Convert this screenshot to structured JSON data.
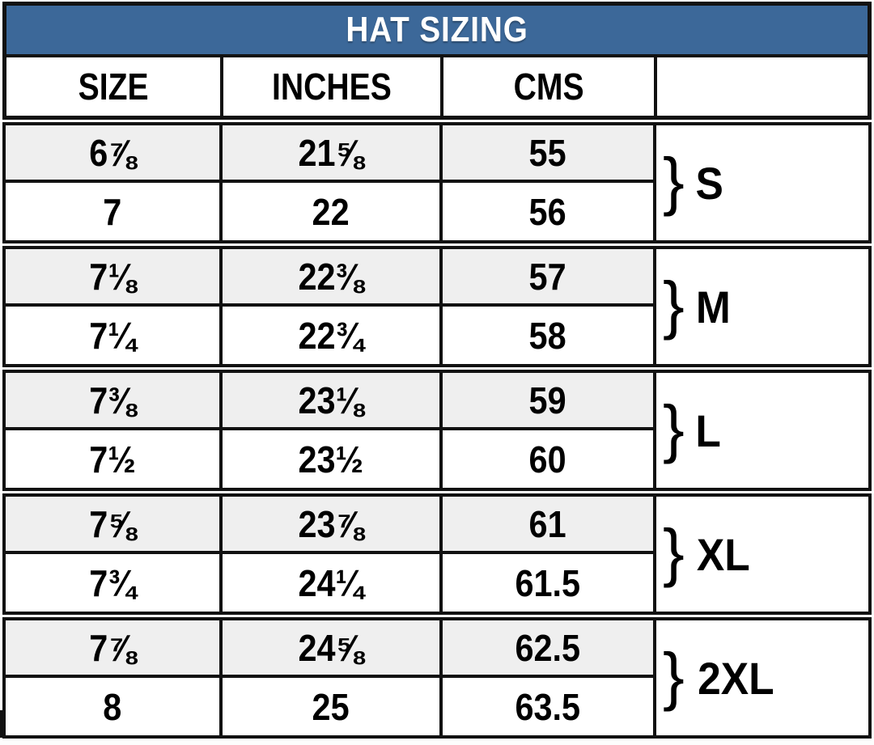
{
  "chart_data": {
    "type": "table",
    "title": "HAT SIZING",
    "columns": [
      "SIZE",
      "INCHES",
      "CMS"
    ],
    "size_groups": [
      {
        "label": "S",
        "brace": "}",
        "rows": [
          [
            "6⅞",
            "21⅝",
            "55"
          ],
          [
            "7",
            "22",
            "56"
          ]
        ]
      },
      {
        "label": "M",
        "brace": "}",
        "rows": [
          [
            "7⅛",
            "22⅜",
            "57"
          ],
          [
            "7¼",
            "22¾",
            "58"
          ]
        ]
      },
      {
        "label": "L",
        "brace": "}",
        "rows": [
          [
            "7⅜",
            "23⅛",
            "59"
          ],
          [
            "7½",
            "23½",
            "60"
          ]
        ]
      },
      {
        "label": "XL",
        "brace": "}",
        "rows": [
          [
            "7⅝",
            "23⅞",
            "61"
          ],
          [
            "7¾",
            "24¼",
            "61.5"
          ]
        ]
      },
      {
        "label": "2XL",
        "brace": "}",
        "rows": [
          [
            "7⅞",
            "24⅝",
            "62.5"
          ],
          [
            "8",
            "25",
            "63.5"
          ]
        ]
      }
    ]
  },
  "colors": {
    "header_bg": "#3c6899",
    "header_text": "#ffffff",
    "row_alt_bg": "#efefef",
    "row_bg": "#ffffff",
    "border": "#111111"
  }
}
